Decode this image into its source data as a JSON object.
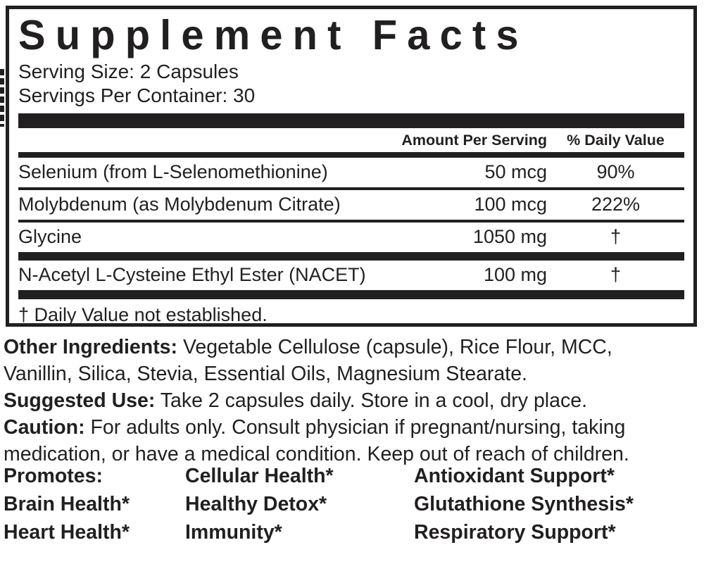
{
  "colors": {
    "ink": "#221f20",
    "background": "#ffffff"
  },
  "panel": {
    "title": "Supplement Facts",
    "serving_size": "Serving Size: 2 Capsules",
    "servings_per_container": "Servings Per Container: 30",
    "columns": {
      "amount": "Amount Per Serving",
      "daily_value": "% Daily Value"
    },
    "rows": [
      {
        "name": "Selenium (from L-Selenomethionine)",
        "amount": "50 mcg",
        "daily_value": "90%"
      },
      {
        "name": "Molybdenum (as Molybdenum Citrate)",
        "amount": "100 mcg",
        "daily_value": "222%"
      },
      {
        "name": "Glycine",
        "amount": "1050 mg",
        "daily_value": "†"
      },
      {
        "name": "N-Acetyl L-Cysteine Ethyl Ester (NACET)",
        "amount": "100 mg",
        "daily_value": "†"
      }
    ],
    "footnote": "† Daily Value not established."
  },
  "info": {
    "other_ingredients": {
      "label": "Other Ingredients:",
      "text": " Vegetable Cellulose (capsule), Rice Flour, MCC,\nVanillin, Silica, Stevia, Essential Oils, Magnesium Stearate."
    },
    "suggested_use": {
      "label": "Suggested Use:",
      "text": " Take 2 capsules daily. Store in a cool, dry place."
    },
    "caution": {
      "label": "Caution:",
      "text": " For adults only. Consult physician if pregnant/nursing, taking\nmedication, or have a medical condition. Keep out of reach of children."
    }
  },
  "promotes": {
    "rows": [
      [
        "Promotes:",
        "Cellular Health*",
        "Antioxidant Support*"
      ],
      [
        "Brain Health*",
        "Healthy Detox*",
        "Glutathione Synthesis*"
      ],
      [
        "Heart Health*",
        "Immunity*",
        "Respiratory Support*"
      ]
    ]
  }
}
